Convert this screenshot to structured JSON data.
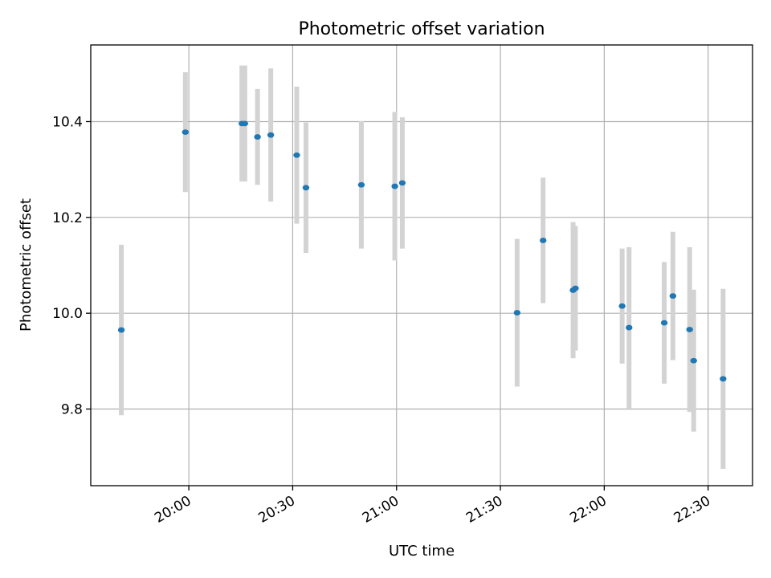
{
  "chart_data": {
    "type": "scatter",
    "title": "Photometric offset variation",
    "xlabel": "UTC time",
    "ylabel": "Photometric offset",
    "xlim": [
      "19:31:40",
      "22:42:50"
    ],
    "ylim": [
      9.64,
      10.56
    ],
    "x_ticks": [
      "20:00",
      "20:30",
      "21:00",
      "21:30",
      "22:00",
      "22:30"
    ],
    "y_ticks": [
      9.8,
      10.0,
      10.2,
      10.4
    ],
    "y_tick_labels": [
      "9.8",
      "10.0",
      "10.2",
      "10.4"
    ],
    "grid": true,
    "marker_color": "#1f77b4",
    "errorbar_color": "#d3d3d3",
    "points": [
      {
        "x": "19:40:30",
        "y": 9.965,
        "err": 0.178
      },
      {
        "x": "19:59:00",
        "y": 10.378,
        "err": 0.125
      },
      {
        "x": "20:15:20",
        "y": 10.396,
        "err": 0.121
      },
      {
        "x": "20:16:10",
        "y": 10.396,
        "err": 0.121
      },
      {
        "x": "20:19:50",
        "y": 10.368,
        "err": 0.1
      },
      {
        "x": "20:23:40",
        "y": 10.372,
        "err": 0.139
      },
      {
        "x": "20:31:10",
        "y": 10.33,
        "err": 0.143
      },
      {
        "x": "20:33:50",
        "y": 10.262,
        "err": 0.136
      },
      {
        "x": "20:49:50",
        "y": 10.268,
        "err": 0.133
      },
      {
        "x": "20:59:30",
        "y": 10.265,
        "err": 0.155
      },
      {
        "x": "21:01:40",
        "y": 10.272,
        "err": 0.137
      },
      {
        "x": "21:34:50",
        "y": 10.001,
        "err": 0.154
      },
      {
        "x": "21:42:20",
        "y": 10.152,
        "err": 0.131
      },
      {
        "x": "21:51:00",
        "y": 10.048,
        "err": 0.142
      },
      {
        "x": "21:51:40",
        "y": 10.052,
        "err": 0.13
      },
      {
        "x": "22:05:10",
        "y": 10.015,
        "err": 0.12
      },
      {
        "x": "22:07:10",
        "y": 9.97,
        "err": 0.168
      },
      {
        "x": "22:17:20",
        "y": 9.98,
        "err": 0.127
      },
      {
        "x": "22:19:50",
        "y": 10.036,
        "err": 0.134
      },
      {
        "x": "22:24:40",
        "y": 9.966,
        "err": 0.172
      },
      {
        "x": "22:25:50",
        "y": 9.901,
        "err": 0.148
      },
      {
        "x": "22:34:20",
        "y": 9.863,
        "err": 0.188
      }
    ]
  }
}
